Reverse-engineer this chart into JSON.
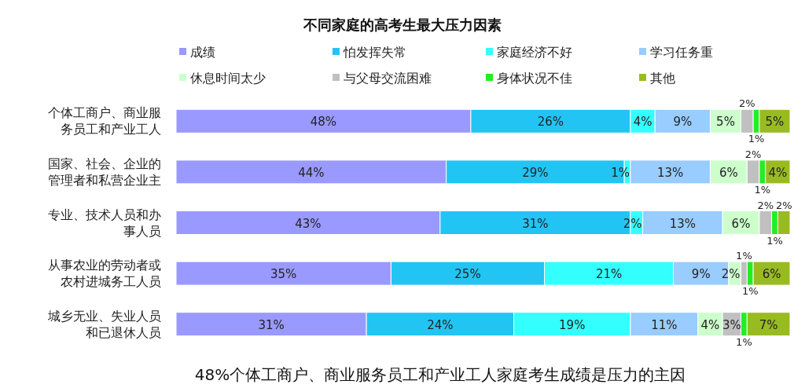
{
  "chart_data": {
    "type": "bar",
    "orientation": "horizontal",
    "stacked": true,
    "title": "不同家庭的高考生最大压力因素",
    "categories": [
      "个体工商户、商业服务员工和产业工人",
      "国家、社会、企业的管理者和私营企业主",
      "专业、技术人员和办事人员",
      "从事农业的劳动者或农村进城务工人员",
      "城乡无业、失业人员和已退休人员"
    ],
    "xlim": [
      0,
      100
    ],
    "legend": "top",
    "series": [
      {
        "name": "成绩",
        "color": "#9999ff",
        "values": [
          48,
          44,
          43,
          35,
          31
        ],
        "value_labels": [
          "48%",
          "44%",
          "43%",
          "35%",
          "31%"
        ]
      },
      {
        "name": "怕发挥失常",
        "color": "#22c4f4",
        "values": [
          26,
          29,
          31,
          25,
          24
        ],
        "value_labels": [
          "26%",
          "29%",
          "31%",
          "25%",
          "24%"
        ]
      },
      {
        "name": "家庭经济不好",
        "color": "#33ffff",
        "values": [
          4,
          1,
          2,
          21,
          19
        ],
        "value_labels": [
          "4%",
          "1%",
          "2%",
          "21%",
          "19%"
        ]
      },
      {
        "name": "学习任务重",
        "color": "#99ccff",
        "values": [
          9,
          13,
          13,
          9,
          11
        ],
        "value_labels": [
          "9%",
          "13%",
          "13%",
          "9%",
          "11%"
        ]
      },
      {
        "name": "休息时间太少",
        "color": "#ccffcc",
        "values": [
          5,
          6,
          6,
          2,
          4
        ],
        "value_labels": [
          "5%",
          "6%",
          "6%",
          "2%",
          "4%"
        ]
      },
      {
        "name": "与父母交流困难",
        "color": "#c0c0c0",
        "values": [
          2,
          2,
          2,
          1,
          3
        ],
        "value_labels": [
          "2%",
          "2%",
          "2%",
          "1%",
          "3%"
        ]
      },
      {
        "name": "身体状况不佳",
        "color": "#22ee22",
        "values": [
          1,
          1,
          1,
          1,
          1
        ],
        "value_labels": [
          "1%",
          "1%",
          "1%",
          "1%",
          "1%"
        ]
      },
      {
        "name": "其他",
        "color": "#99bb22",
        "values": [
          5,
          4,
          2,
          6,
          7
        ],
        "value_labels": [
          "5%",
          "4%",
          "2%",
          "6%",
          "7%"
        ]
      }
    ],
    "annotations": [
      "48%个体工商户、商业服务员工和产业工人家庭考生成绩是压力的主因"
    ]
  }
}
